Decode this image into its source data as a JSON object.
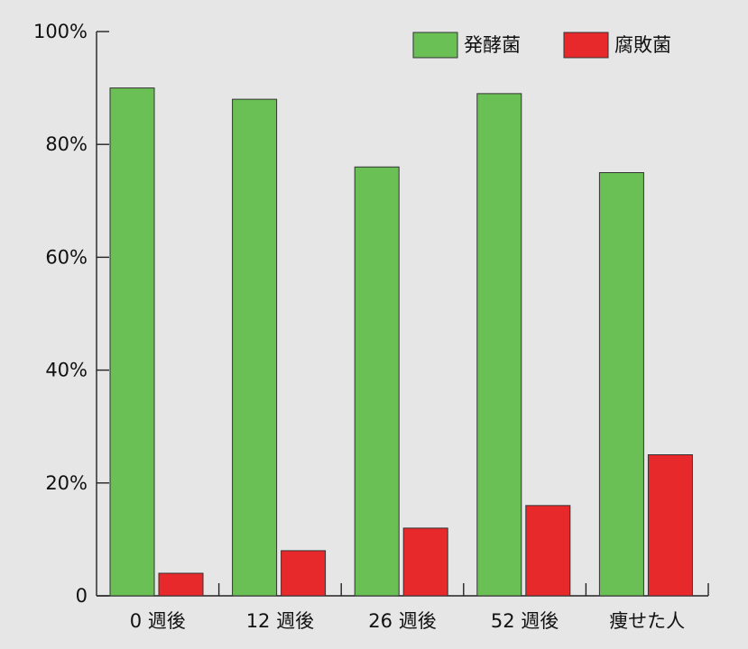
{
  "chart_data": {
    "type": "bar",
    "categories": [
      "0 週後",
      "12 週後",
      "26 週後",
      "52 週後",
      "痩せた人"
    ],
    "series": [
      {
        "name": "発酵菌",
        "color": "#6abf55",
        "values": [
          90,
          88,
          76,
          89,
          75
        ]
      },
      {
        "name": "腐敗菌",
        "color": "#e8292b",
        "values": [
          4,
          8,
          12,
          16,
          25
        ]
      }
    ],
    "yticks": [
      {
        "value": 0,
        "label": "0"
      },
      {
        "value": 20,
        "label": "20%"
      },
      {
        "value": 40,
        "label": "40%"
      },
      {
        "value": 60,
        "label": "60%"
      },
      {
        "value": 80,
        "label": "80%"
      },
      {
        "value": 100,
        "label": "100%"
      }
    ],
    "ylim": [
      0,
      100
    ],
    "title": "",
    "xlabel": "",
    "ylabel": "",
    "grid": false,
    "legend_position": "top-right"
  }
}
